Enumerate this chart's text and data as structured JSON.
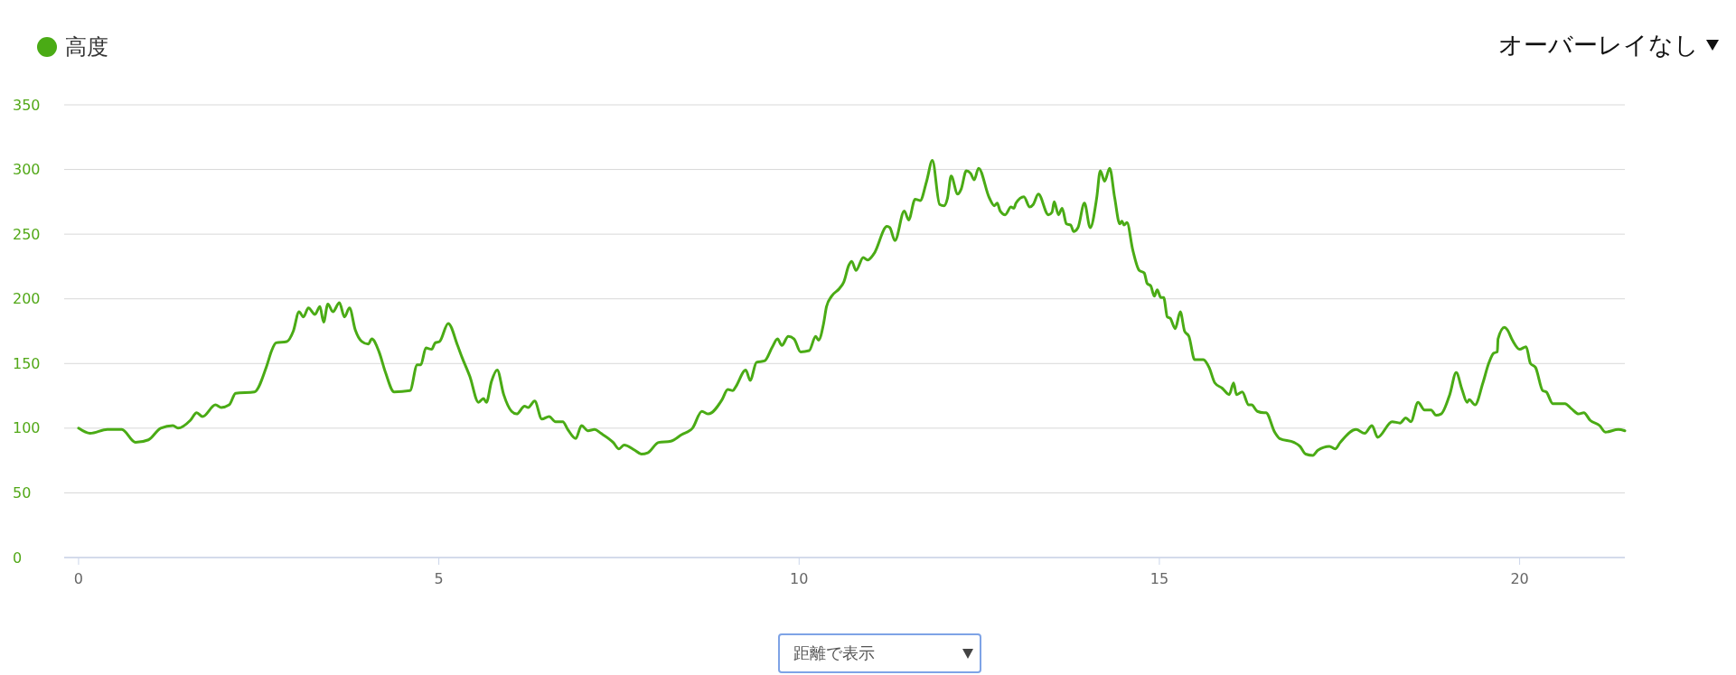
{
  "chart_data": {
    "type": "line",
    "legend": "top left",
    "grid": "y",
    "marker": "none",
    "line_style": "solid",
    "xlim": [
      -0.2,
      21.46
    ],
    "xticks": [
      0,
      5,
      10,
      15,
      20
    ],
    "ylim": [
      0,
      350
    ],
    "yticks": [
      0,
      50,
      100,
      150,
      200,
      250,
      300,
      350
    ],
    "annotations": [
      "オーバーレイなし",
      "距離で表示"
    ],
    "series": [
      {
        "name": "高度",
        "color": "#4aab15",
        "x": [
          0,
          0.16,
          0.4,
          0.6,
          0.79,
          0.97,
          1.14,
          1.31,
          1.38,
          1.55,
          1.64,
          1.72,
          1.9,
          1.98,
          2.09,
          2.18,
          2.44,
          2.61,
          2.68,
          2.74,
          2.89,
          2.98,
          3.06,
          3.12,
          3.19,
          3.28,
          3.35,
          3.4,
          3.46,
          3.53,
          3.62,
          3.69,
          3.76,
          3.84,
          3.93,
          4.02,
          4.07,
          4.17,
          4.26,
          4.38,
          4.6,
          4.7,
          4.75,
          4.82,
          4.9,
          4.95,
          5.01,
          5.13,
          5.26,
          5.32,
          5.43,
          5.55,
          5.62,
          5.66,
          5.73,
          5.81,
          5.9,
          6.01,
          6.08,
          6.19,
          6.24,
          6.33,
          6.43,
          6.53,
          6.62,
          6.72,
          6.79,
          6.9,
          6.98,
          7.07,
          7.16,
          7.25,
          7.42,
          7.5,
          7.57,
          7.72,
          7.81,
          7.9,
          8.05,
          8.22,
          8.37,
          8.52,
          8.65,
          8.74,
          8.93,
          9.01,
          9.08,
          9.12,
          9.26,
          9.32,
          9.41,
          9.52,
          9.63,
          9.7,
          9.76,
          9.85,
          9.93,
          10.02,
          10.14,
          10.23,
          10.27,
          10.34,
          10.38,
          10.45,
          10.56,
          10.62,
          10.69,
          10.73,
          10.79,
          10.89,
          10.95,
          11.04,
          11.22,
          11.26,
          11.33,
          11.46,
          11.52,
          11.61,
          11.68,
          11.77,
          11.85,
          11.95,
          12.01,
          12.06,
          12.11,
          12.2,
          12.25,
          12.32,
          12.38,
          12.43,
          12.49,
          12.64,
          12.71,
          12.75,
          12.79,
          12.86,
          12.94,
          12.98,
          13.01,
          13.12,
          13.2,
          13.25,
          13.32,
          13.46,
          13.51,
          13.54,
          13.6,
          13.65,
          13.71,
          13.77,
          13.81,
          13.87,
          13.96,
          14.04,
          14.13,
          14.18,
          14.24,
          14.31,
          14.38,
          14.45,
          14.48,
          14.51,
          14.55,
          14.63,
          14.72,
          14.79,
          14.83,
          14.88,
          14.93,
          14.97,
          15.02,
          15.06,
          15.11,
          15.15,
          15.22,
          15.29,
          15.35,
          15.41,
          15.49,
          15.61,
          15.69,
          15.77,
          15.87,
          15.97,
          16.03,
          16.07,
          16.15,
          16.24,
          16.28,
          16.36,
          16.45,
          16.48,
          16.6,
          16.67,
          16.87,
          16.95,
          17.03,
          17.13,
          17.2,
          17.36,
          17.44,
          17.51,
          17.73,
          17.85,
          17.95,
          18.03,
          18.23,
          18.34,
          18.42,
          18.49,
          18.59,
          18.68,
          18.77,
          18.84,
          18.91,
          19.03,
          19.12,
          19.2,
          19.27,
          19.3,
          19.38,
          19.49,
          19.57,
          19.64,
          19.69,
          19.7,
          19.79,
          19.83,
          19.9,
          20,
          20.09,
          20.15,
          20.22,
          20.32,
          20.37,
          20.46,
          20.55,
          20.63,
          20.72,
          20.82,
          20.89,
          20.98,
          21.11,
          21.19,
          21.37,
          21.46
        ],
        "values": [
          100,
          96,
          99,
          99,
          89,
          91,
          100,
          102,
          100,
          106,
          112,
          109,
          118,
          116,
          118,
          127,
          128,
          148,
          160,
          166,
          167,
          175,
          190,
          186,
          193,
          188,
          194,
          182,
          196,
          190,
          197,
          186,
          193,
          176,
          167,
          165,
          169,
          159,
          143,
          128,
          129,
          149,
          149,
          162,
          161,
          166,
          167,
          181,
          164,
          155,
          140,
          120,
          123,
          120,
          136,
          145,
          126,
          113,
          111,
          117,
          116,
          121,
          107,
          109,
          105,
          105,
          99,
          92,
          102,
          98,
          99,
          96,
          89,
          84,
          87,
          83,
          80,
          81,
          89,
          90,
          95,
          100,
          113,
          111,
          122,
          130,
          129,
          132,
          145,
          137,
          151,
          152,
          163,
          169,
          164,
          171,
          169,
          159,
          160,
          171,
          168,
          181,
          194,
          202,
          208,
          213,
          226,
          229,
          222,
          232,
          230,
          235,
          256,
          255,
          245,
          268,
          261,
          277,
          276,
          291,
          307,
          273,
          272,
          278,
          295,
          281,
          285,
          299,
          297,
          292,
          301,
          278,
          272,
          274,
          268,
          265,
          271,
          270,
          274,
          279,
          271,
          273,
          281,
          265,
          267,
          275,
          265,
          270,
          258,
          257,
          252,
          255,
          274,
          255,
          278,
          299,
          291,
          301,
          278,
          258,
          260,
          257,
          259,
          238,
          222,
          220,
          212,
          210,
          202,
          207,
          201,
          201,
          186,
          185,
          177,
          190,
          175,
          171,
          153,
          153,
          147,
          135,
          131,
          126,
          135,
          126,
          128,
          118,
          118,
          113,
          112,
          112,
          97,
          92,
          89,
          86,
          80,
          79,
          83,
          86,
          84,
          89,
          99,
          96,
          102,
          93,
          105,
          104,
          108,
          105,
          120,
          114,
          114,
          110,
          111,
          126,
          143,
          130,
          120,
          122,
          118,
          135,
          150,
          158,
          159,
          169,
          178,
          176,
          168,
          161,
          163,
          150,
          147,
          129,
          128,
          119,
          119,
          119,
          115,
          111,
          112,
          106,
          102,
          97,
          99,
          98
        ]
      }
    ]
  }
}
